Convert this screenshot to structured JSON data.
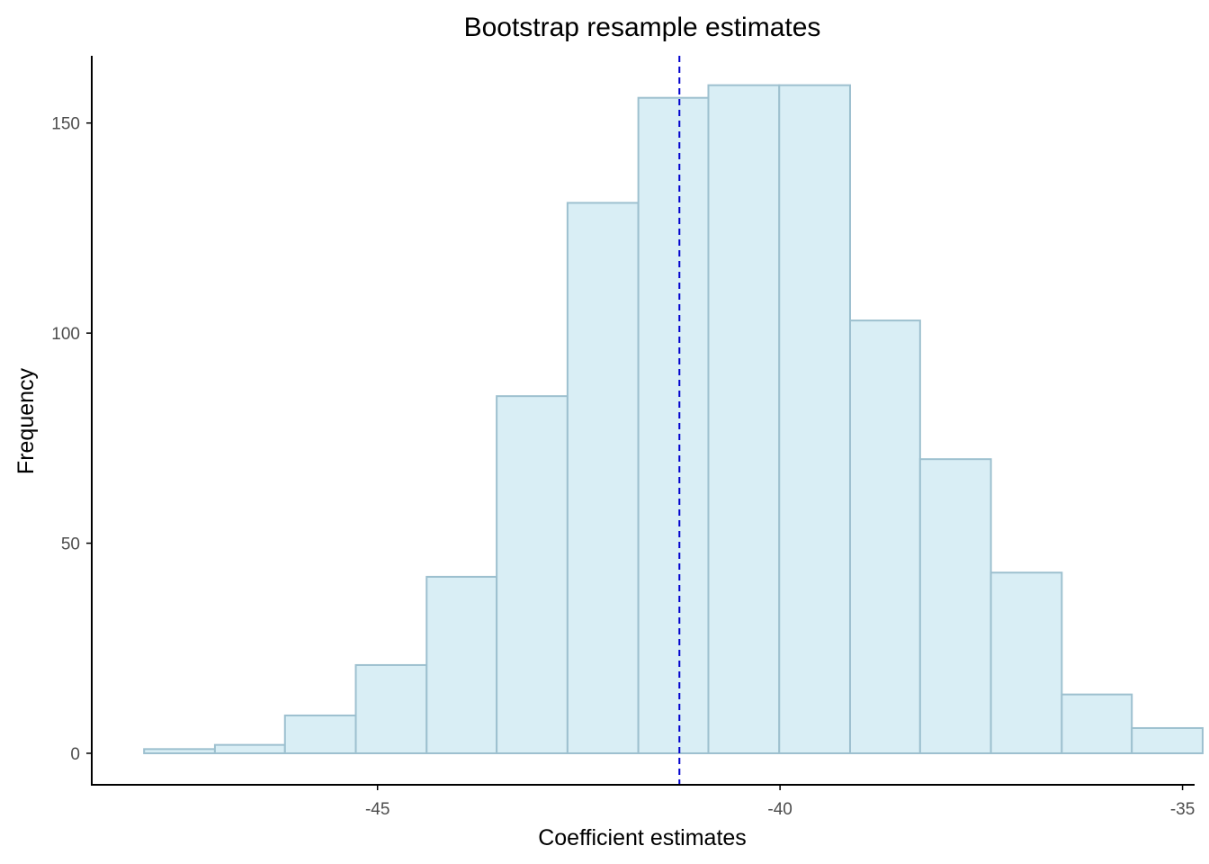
{
  "chart_data": {
    "type": "bar",
    "title": "Bootstrap resample estimates",
    "xlabel": "Coefficient estimates",
    "ylabel": "Frequency",
    "xlim": [
      -48.55,
      -34.85
    ],
    "ylim": [
      -7.5,
      166
    ],
    "x_ticks": [
      -45,
      -40,
      -35
    ],
    "y_ticks": [
      0,
      50,
      100,
      150
    ],
    "bins": [
      {
        "x0": -47.9,
        "x1": -47.02,
        "count": 1
      },
      {
        "x0": -47.02,
        "x1": -46.15,
        "count": 2
      },
      {
        "x0": -46.15,
        "x1": -45.27,
        "count": 9
      },
      {
        "x0": -45.27,
        "x1": -44.39,
        "count": 21
      },
      {
        "x0": -44.39,
        "x1": -43.52,
        "count": 42
      },
      {
        "x0": -43.52,
        "x1": -42.64,
        "count": 85
      },
      {
        "x0": -42.64,
        "x1": -41.76,
        "count": 131
      },
      {
        "x0": -41.76,
        "x1": -40.89,
        "count": 156
      },
      {
        "x0": -40.89,
        "x1": -40.01,
        "count": 159
      },
      {
        "x0": -40.01,
        "x1": -39.13,
        "count": 159
      },
      {
        "x0": -39.13,
        "x1": -38.26,
        "count": 103
      },
      {
        "x0": -38.26,
        "x1": -37.38,
        "count": 70
      },
      {
        "x0": -37.38,
        "x1": -36.5,
        "count": 43
      },
      {
        "x0": -36.5,
        "x1": -35.63,
        "count": 14
      },
      {
        "x0": -35.63,
        "x1": -34.75,
        "count": 6
      }
    ],
    "reference_line": {
      "x": -41.25,
      "style": "dashed",
      "color": "#0000cd"
    },
    "bar_fill": "#d9eef5",
    "bar_stroke": "#9dc0cf",
    "grid": false,
    "legend": "none"
  }
}
